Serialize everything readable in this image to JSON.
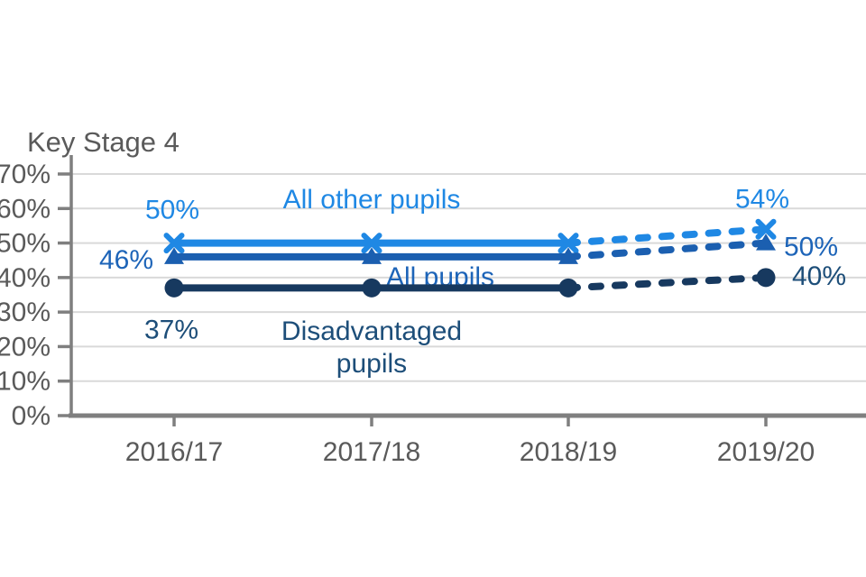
{
  "chart_data": {
    "type": "line",
    "title": "Key Stage 4",
    "categories": [
      "2016/17",
      "2017/18",
      "2018/19",
      "2019/20"
    ],
    "y_axis": {
      "ticks": [
        "0%",
        "10%",
        "20%",
        "30%",
        "40%",
        "50%",
        "60%",
        "70%"
      ],
      "min": 0,
      "max": 70,
      "grid": true
    },
    "x_axis": {
      "ticks": [
        "2016/17",
        "2017/18",
        "2018/19",
        "2019/20"
      ]
    },
    "legend_position": "inline-labels",
    "dashed_note": "final segment 2018/19 to 2019/20 drawn dashed",
    "series": [
      {
        "name": "All other pupils",
        "values": [
          50,
          50,
          50,
          54
        ],
        "color": "#1f88e4",
        "label_color": "#1f88e4",
        "marker": "x",
        "dash_from": 2,
        "point_labels": [
          {
            "text": "50%",
            "point": 0,
            "dx": -2,
            "dy": -27
          },
          {
            "text": "54%",
            "point": 3,
            "dx": -4,
            "dy": -24
          }
        ],
        "series_label": {
          "lines": [
            "All other pupils"
          ],
          "x": 412,
          "y": 231
        }
      },
      {
        "name": "All pupils",
        "values": [
          46,
          46,
          46,
          50
        ],
        "color": "#1b5fb0",
        "label_color": "#1d64b8",
        "marker": "triangle",
        "dash_from": 2,
        "point_labels": [
          {
            "text": "46%",
            "point": 0,
            "dx": -53,
            "dy": 13
          },
          {
            "text": "50%",
            "point": 3,
            "dx": 50,
            "dy": 14
          }
        ],
        "series_label": {
          "lines": [
            "All pupils"
          ],
          "x": 488,
          "y": 317
        }
      },
      {
        "name": "Disadvantaged pupils",
        "values": [
          37,
          37,
          37,
          40
        ],
        "color": "#17395f",
        "label_color": "#1d4e79",
        "marker": "circle",
        "dash_from": 2,
        "point_labels": [
          {
            "text": "37%",
            "point": 0,
            "dx": -3,
            "dy": 56
          },
          {
            "text": "40%",
            "point": 3,
            "dx": 59,
            "dy": 8
          }
        ],
        "series_label": {
          "lines": [
            "Disadvantaged",
            "pupils"
          ],
          "x": 412,
          "y": 377
        }
      }
    ],
    "style": {
      "grid_color": "#d9d9d9",
      "axis_color": "#7f7f7f",
      "tick_label_color": "#5a5a5a",
      "background": "#ffffff"
    }
  }
}
